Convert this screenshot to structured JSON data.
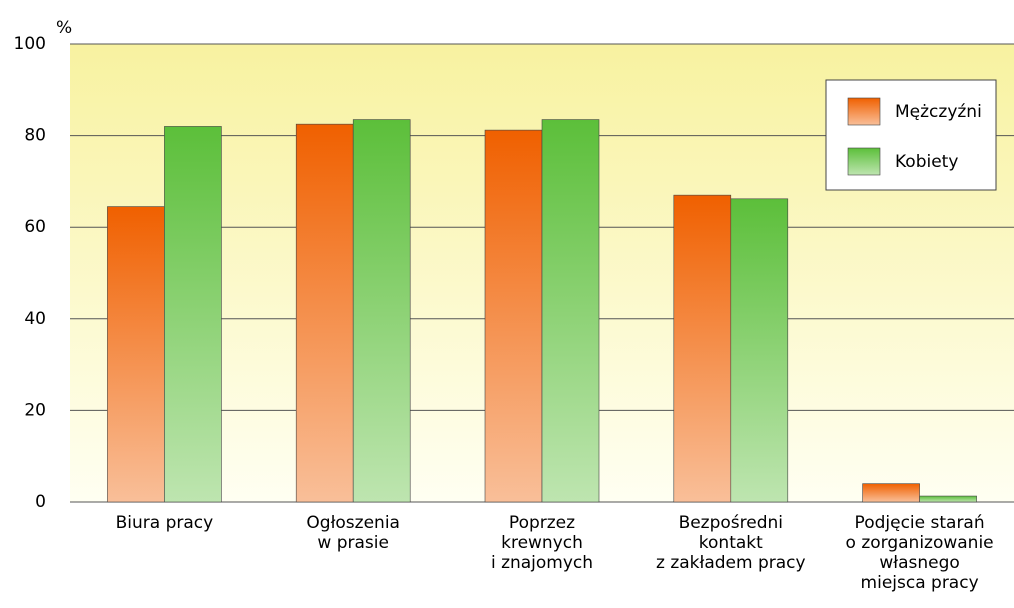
{
  "chart_data": {
    "type": "bar",
    "y_unit_label": "%",
    "categories": [
      "Biura pracy",
      "Ogłoszenia\nw prasie",
      "Poprzez\nkrewnych\ni znajomych",
      "Bezpośredni\nkontakt\nz zakładem pracy",
      "Podjęcie starań\no zorganizowanie\nwłasnego\nmiejsca pracy"
    ],
    "series": [
      {
        "name": "Mężczyźni",
        "color": "#f06000",
        "values": [
          64.5,
          82.5,
          81.2,
          67,
          4
        ]
      },
      {
        "name": "Kobiety",
        "color": "#5cbf3a",
        "values": [
          82,
          83.5,
          83.5,
          66.2,
          1.3
        ]
      }
    ],
    "ylim": [
      0,
      100
    ],
    "yticks": [
      0,
      20,
      40,
      60,
      80,
      100
    ],
    "grid": true,
    "legend": "upper right"
  }
}
